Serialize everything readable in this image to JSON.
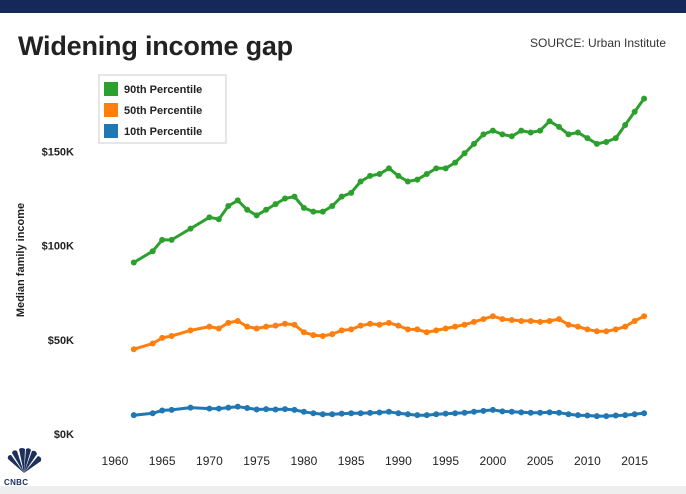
{
  "header": {
    "title": "Widening income gap",
    "source": "SOURCE: Urban Institute"
  },
  "brand": {
    "logo_text": "CNBC"
  },
  "colors": {
    "topbar": "#14285a",
    "p90": "#2ca02c",
    "p50": "#ff7f0e",
    "p10": "#1f77b4"
  },
  "chart_data": {
    "type": "line",
    "title": "Widening income gap",
    "xlabel": "",
    "ylabel": "Median family income",
    "xlim": [
      1958,
      2018
    ],
    "ylim": [
      0,
      190000
    ],
    "yticks": [
      0,
      50000,
      100000,
      150000
    ],
    "ytick_labels": [
      "$0K",
      "$50K",
      "$100K",
      "$150K"
    ],
    "xticks": [
      1960,
      1965,
      1970,
      1975,
      1980,
      1985,
      1990,
      1995,
      2000,
      2005,
      2010,
      2015
    ],
    "legend_position": "top-left",
    "x": [
      1962,
      1964,
      1965,
      1966,
      1968,
      1970,
      1971,
      1972,
      1973,
      1974,
      1975,
      1976,
      1977,
      1978,
      1979,
      1980,
      1981,
      1982,
      1983,
      1984,
      1985,
      1986,
      1987,
      1988,
      1989,
      1990,
      1991,
      1992,
      1993,
      1994,
      1995,
      1996,
      1997,
      1998,
      1999,
      2000,
      2001,
      2002,
      2003,
      2004,
      2005,
      2006,
      2007,
      2008,
      2009,
      2010,
      2011,
      2012,
      2013,
      2014,
      2015,
      2016
    ],
    "series": [
      {
        "name": "90th Percentile",
        "color": "#2ca02c",
        "values": [
          91000,
          97000,
          103000,
          103000,
          109000,
          115000,
          114000,
          121000,
          124000,
          119000,
          116000,
          119000,
          122000,
          125000,
          126000,
          120000,
          118000,
          118000,
          121000,
          126000,
          128000,
          134000,
          137000,
          138000,
          141000,
          137000,
          134000,
          135000,
          138000,
          141000,
          141000,
          144000,
          149000,
          154000,
          159000,
          161000,
          159000,
          158000,
          161000,
          160000,
          161000,
          166000,
          163000,
          159000,
          160000,
          157000,
          154000,
          155000,
          157000,
          164000,
          171000,
          178000
        ]
      },
      {
        "name": "50th Percentile",
        "color": "#ff7f0e",
        "values": [
          45000,
          48000,
          51000,
          52000,
          55000,
          57000,
          56000,
          59000,
          60000,
          57000,
          56000,
          57000,
          57500,
          58500,
          58000,
          54000,
          52500,
          52000,
          53000,
          55000,
          55500,
          57500,
          58500,
          58000,
          59000,
          57500,
          55500,
          55500,
          54000,
          55000,
          56000,
          57000,
          58000,
          59500,
          61000,
          62500,
          61000,
          60500,
          60000,
          60000,
          59500,
          60000,
          61000,
          58000,
          57000,
          55500,
          54500,
          54500,
          55500,
          57000,
          60000,
          62500
        ]
      },
      {
        "name": "10th Percentile",
        "color": "#1f77b4",
        "values": [
          10000,
          11000,
          12500,
          12800,
          14000,
          13500,
          13500,
          14000,
          14500,
          13800,
          13000,
          13200,
          13000,
          13200,
          12800,
          11800,
          11000,
          10500,
          10500,
          10800,
          11000,
          11000,
          11200,
          11400,
          11800,
          11000,
          10500,
          10000,
          10000,
          10500,
          10800,
          11000,
          11300,
          11800,
          12300,
          12800,
          12000,
          11800,
          11500,
          11300,
          11300,
          11500,
          11300,
          10500,
          10000,
          9800,
          9500,
          9500,
          9800,
          10000,
          10500,
          11000
        ]
      }
    ]
  }
}
